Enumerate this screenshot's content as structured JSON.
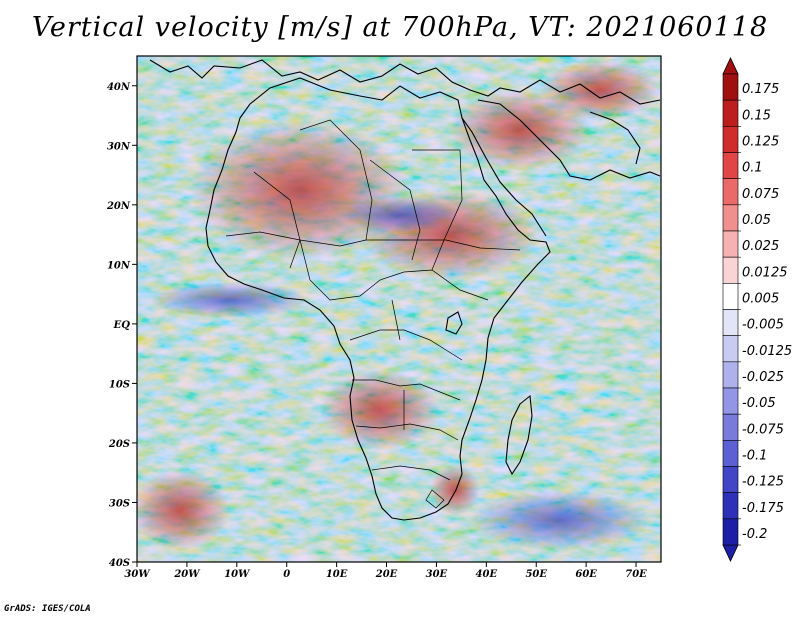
{
  "title": "Vertical velocity [m/s] at 700hPa, VT: 2021060118",
  "credit": "GrADS: IGES/COLA",
  "map": {
    "lat_ticks": [
      "40N",
      "30N",
      "20N",
      "10N",
      "EQ",
      "10S",
      "20S",
      "30S",
      "40S"
    ],
    "lon_ticks": [
      "30W",
      "20W",
      "10W",
      "0",
      "10E",
      "20E",
      "30E",
      "40E",
      "50E",
      "60E",
      "70E"
    ],
    "lon_range": [
      -30,
      75
    ],
    "lat_range": [
      -40,
      45
    ]
  },
  "colorbar": {
    "levels": [
      "0.175",
      "0.15",
      "0.125",
      "0.1",
      "0.075",
      "0.05",
      "0.025",
      "0.0125",
      "0.005",
      "-0.005",
      "-0.0125",
      "-0.025",
      "-0.05",
      "-0.075",
      "-0.1",
      "-0.125",
      "-0.175",
      "-0.2"
    ],
    "colors": [
      "#a01010",
      "#bc1e1e",
      "#d02c2c",
      "#e04646",
      "#ea6a6a",
      "#f18e8e",
      "#f6b2b2",
      "#fad4d4",
      "#ffffff",
      "#e2e4f8",
      "#c8cbf2",
      "#aeb1ec",
      "#9396e4",
      "#787bdc",
      "#5d60d2",
      "#4246c6",
      "#2e31b8",
      "#1c1fa6"
    ]
  }
}
